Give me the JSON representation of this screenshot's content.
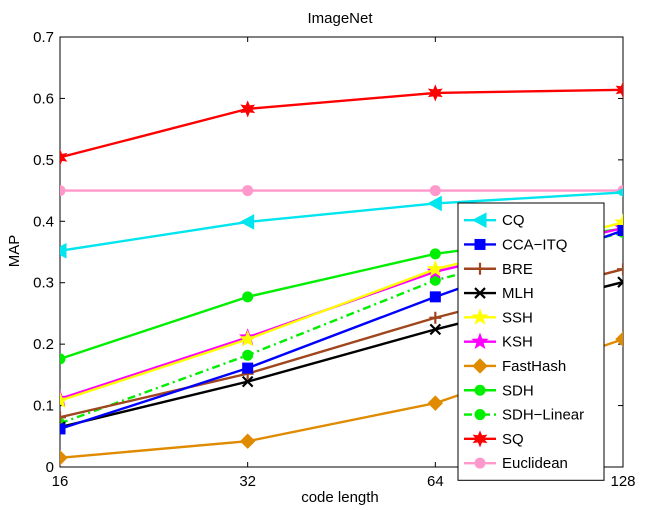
{
  "chart_data": {
    "type": "line",
    "title": "ImageNet",
    "xlabel": "code length",
    "ylabel": "MAP",
    "x": [
      16,
      32,
      64,
      128
    ],
    "xticks": [
      16,
      32,
      64,
      128
    ],
    "xlim": [
      16,
      128
    ],
    "ylim": [
      0,
      0.7
    ],
    "yticks": [
      0,
      0.1,
      0.2,
      0.3,
      0.4,
      0.5,
      0.6,
      0.7
    ],
    "ytick_labels": [
      "0",
      "0.1",
      "0.2",
      "0.3",
      "0.4",
      "0.5",
      "0.6",
      "0.7"
    ],
    "grid": false,
    "legend_position": "right",
    "series": [
      {
        "name": "CQ",
        "values": [
          0.352,
          0.399,
          0.429,
          0.447
        ],
        "color": "#00e5ee",
        "marker": "triangle-left",
        "dash": "solid"
      },
      {
        "name": "CCA−ITQ",
        "values": [
          0.062,
          0.161,
          0.277,
          0.385
        ],
        "color": "#0000ff",
        "marker": "square",
        "dash": "solid"
      },
      {
        "name": "BRE",
        "values": [
          0.081,
          0.152,
          0.243,
          0.322
        ],
        "color": "#a0461e",
        "marker": "plus",
        "dash": "solid"
      },
      {
        "name": "MLH",
        "values": [
          0.065,
          0.139,
          0.224,
          0.301
        ],
        "color": "#000000",
        "marker": "x",
        "dash": "solid"
      },
      {
        "name": "SSH",
        "values": [
          0.108,
          0.208,
          0.322,
          0.398
        ],
        "color": "#ffff00",
        "marker": "star",
        "dash": "solid"
      },
      {
        "name": "KSH",
        "values": [
          0.111,
          0.211,
          0.318,
          0.389
        ],
        "color": "#ff00ff",
        "marker": "star",
        "dash": "solid"
      },
      {
        "name": "FastHash",
        "values": [
          0.015,
          0.042,
          0.104,
          0.208
        ],
        "color": "#e08a00",
        "marker": "diamond",
        "dash": "solid"
      },
      {
        "name": "SDH",
        "values": [
          0.176,
          0.277,
          0.347,
          0.388
        ],
        "color": "#00ee00",
        "marker": "circle",
        "dash": "solid"
      },
      {
        "name": "SDH−Linear",
        "values": [
          0.071,
          0.182,
          0.304,
          0.382
        ],
        "color": "#00ee00",
        "marker": "circle",
        "dash": "dashdot"
      },
      {
        "name": "SQ",
        "values": [
          0.504,
          0.583,
          0.609,
          0.614
        ],
        "color": "#ff0000",
        "marker": "hexstar",
        "dash": "solid"
      },
      {
        "name": "Euclidean",
        "values": [
          0.45,
          0.45,
          0.45,
          0.45
        ],
        "color": "#ff99cc",
        "marker": "circle",
        "dash": "solid"
      }
    ]
  }
}
